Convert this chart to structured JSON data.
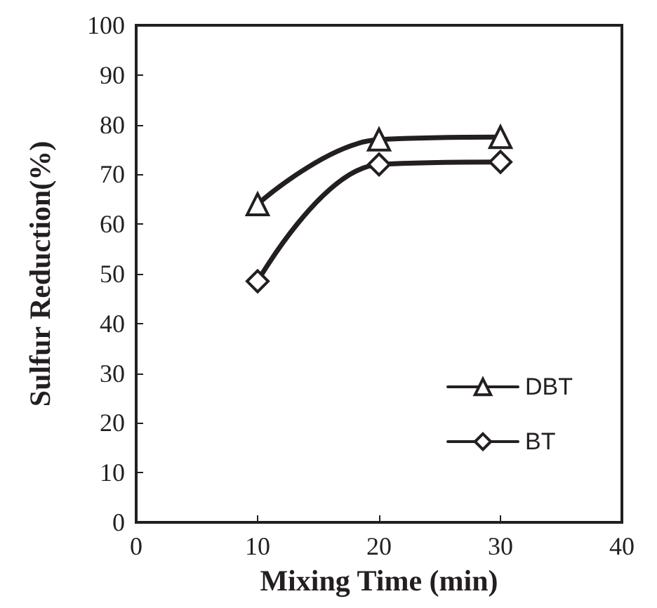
{
  "chart_data": {
    "type": "line",
    "xlabel": "Mixing Time (min)",
    "ylabel": "Sulfur Reduction(%)",
    "x": [
      10,
      20,
      30
    ],
    "series": [
      {
        "name": "DBT",
        "color": "#231f20",
        "marker": "triangle",
        "values": [
          64,
          77,
          77.5
        ]
      },
      {
        "name": "BT",
        "color": "#231f20",
        "marker": "diamond",
        "values": [
          48.5,
          72,
          72.5
        ]
      }
    ],
    "xlim": [
      0,
      40
    ],
    "xticks": [
      0,
      10,
      20,
      30,
      40
    ],
    "ylim": [
      0,
      100
    ],
    "yticks": [
      0,
      10,
      20,
      30,
      40,
      50,
      60,
      70,
      80,
      90,
      100
    ],
    "grid": false,
    "legend": "bottom right",
    "line_style": "solid"
  }
}
